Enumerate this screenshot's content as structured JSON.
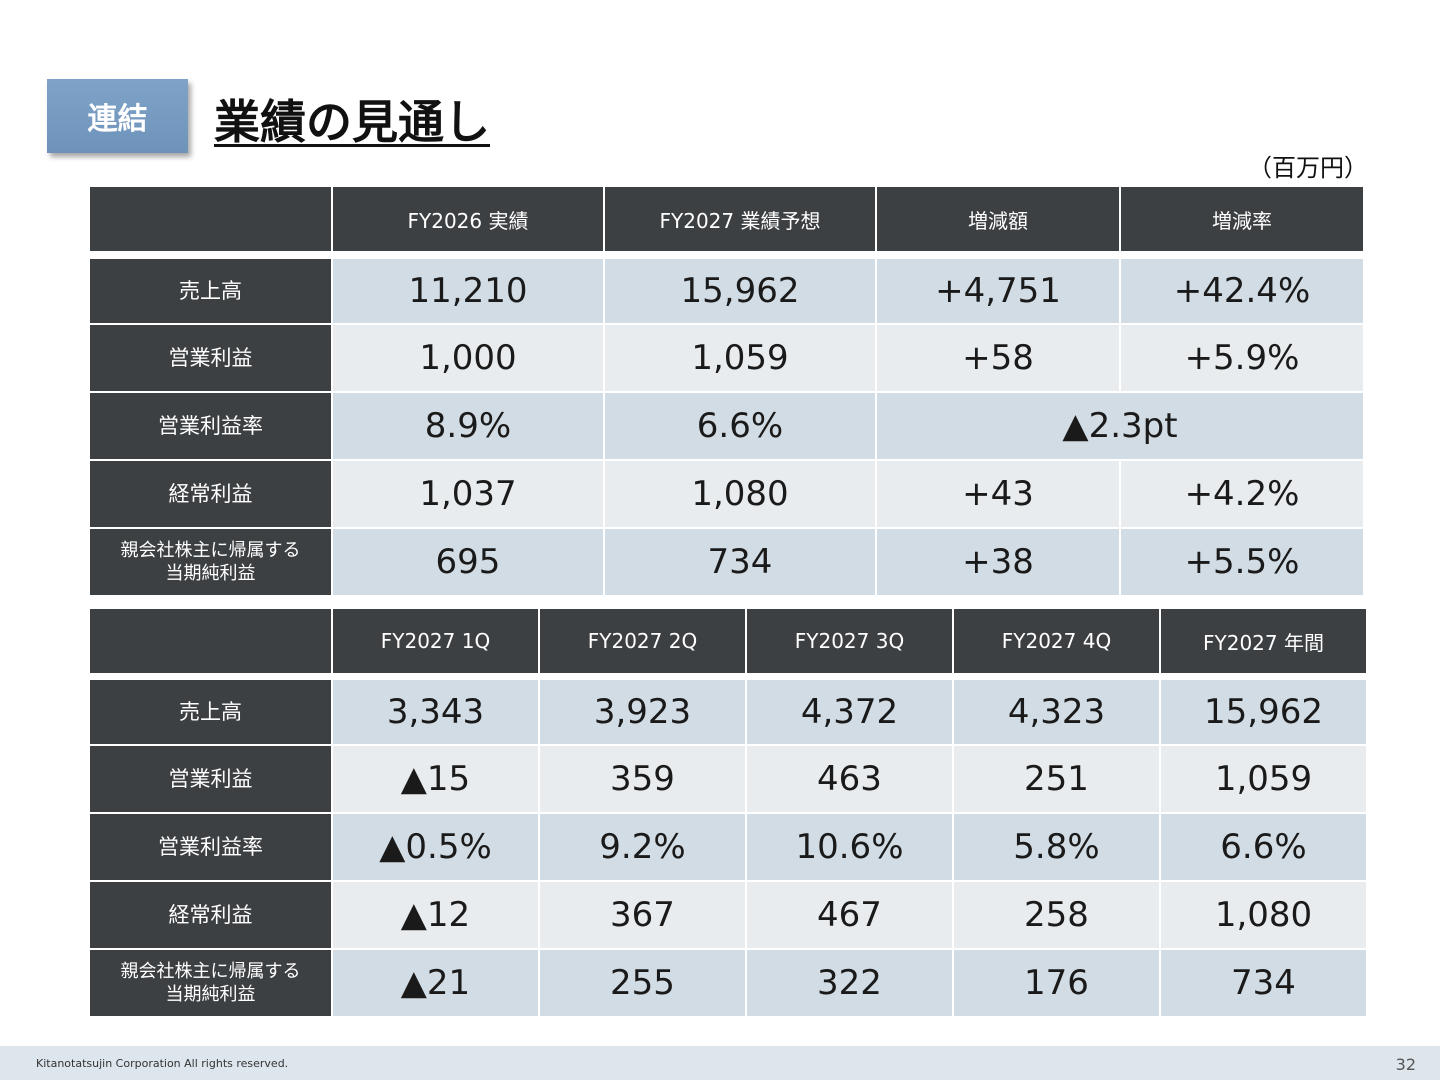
{
  "header": {
    "badge": "連結",
    "title": "業績の見通し",
    "unit": "（百万円）"
  },
  "forecast_table": {
    "columns": [
      "",
      "FY2026 実績",
      "FY2027 業績予想",
      "増減額",
      "増減率"
    ],
    "rows": [
      {
        "label": [
          "売上高"
        ],
        "values": [
          "11,210",
          "15,962",
          "+4,751",
          "+42.4%"
        ]
      },
      {
        "label": [
          "営業利益"
        ],
        "values": [
          "1,000",
          "1,059",
          "+58",
          "+5.9%"
        ]
      },
      {
        "label": [
          "営業利益率"
        ],
        "values": [
          "8.9%",
          "6.6%",
          "▲2.3pt"
        ]
      },
      {
        "label": [
          "経常利益"
        ],
        "values": [
          "1,037",
          "1,080",
          "+43",
          "+4.2%"
        ]
      },
      {
        "label": [
          "親会社株主に帰属する",
          "当期純利益"
        ],
        "values": [
          "695",
          "734",
          "+38",
          "+5.5%"
        ]
      }
    ]
  },
  "quarterly_table": {
    "columns": [
      "",
      "FY2027 1Q",
      "FY2027 2Q",
      "FY2027 3Q",
      "FY2027 4Q",
      "FY2027 年間"
    ],
    "rows": [
      {
        "label": [
          "売上高"
        ],
        "values": [
          "3,343",
          "3,923",
          "4,372",
          "4,323",
          "15,962"
        ]
      },
      {
        "label": [
          "営業利益"
        ],
        "values": [
          "▲15",
          "359",
          "463",
          "251",
          "1,059"
        ]
      },
      {
        "label": [
          "営業利益率"
        ],
        "values": [
          "▲0.5%",
          "9.2%",
          "10.6%",
          "5.8%",
          "6.6%"
        ]
      },
      {
        "label": [
          "経常利益"
        ],
        "values": [
          "▲12",
          "367",
          "467",
          "258",
          "1,080"
        ]
      },
      {
        "label": [
          "親会社株主に帰属する",
          "当期純利益"
        ],
        "values": [
          "▲21",
          "255",
          "322",
          "176",
          "734"
        ]
      }
    ]
  },
  "footer": {
    "copyright": "Kitanotatsujin Corporation All rights reserved.",
    "page_number": "32"
  }
}
